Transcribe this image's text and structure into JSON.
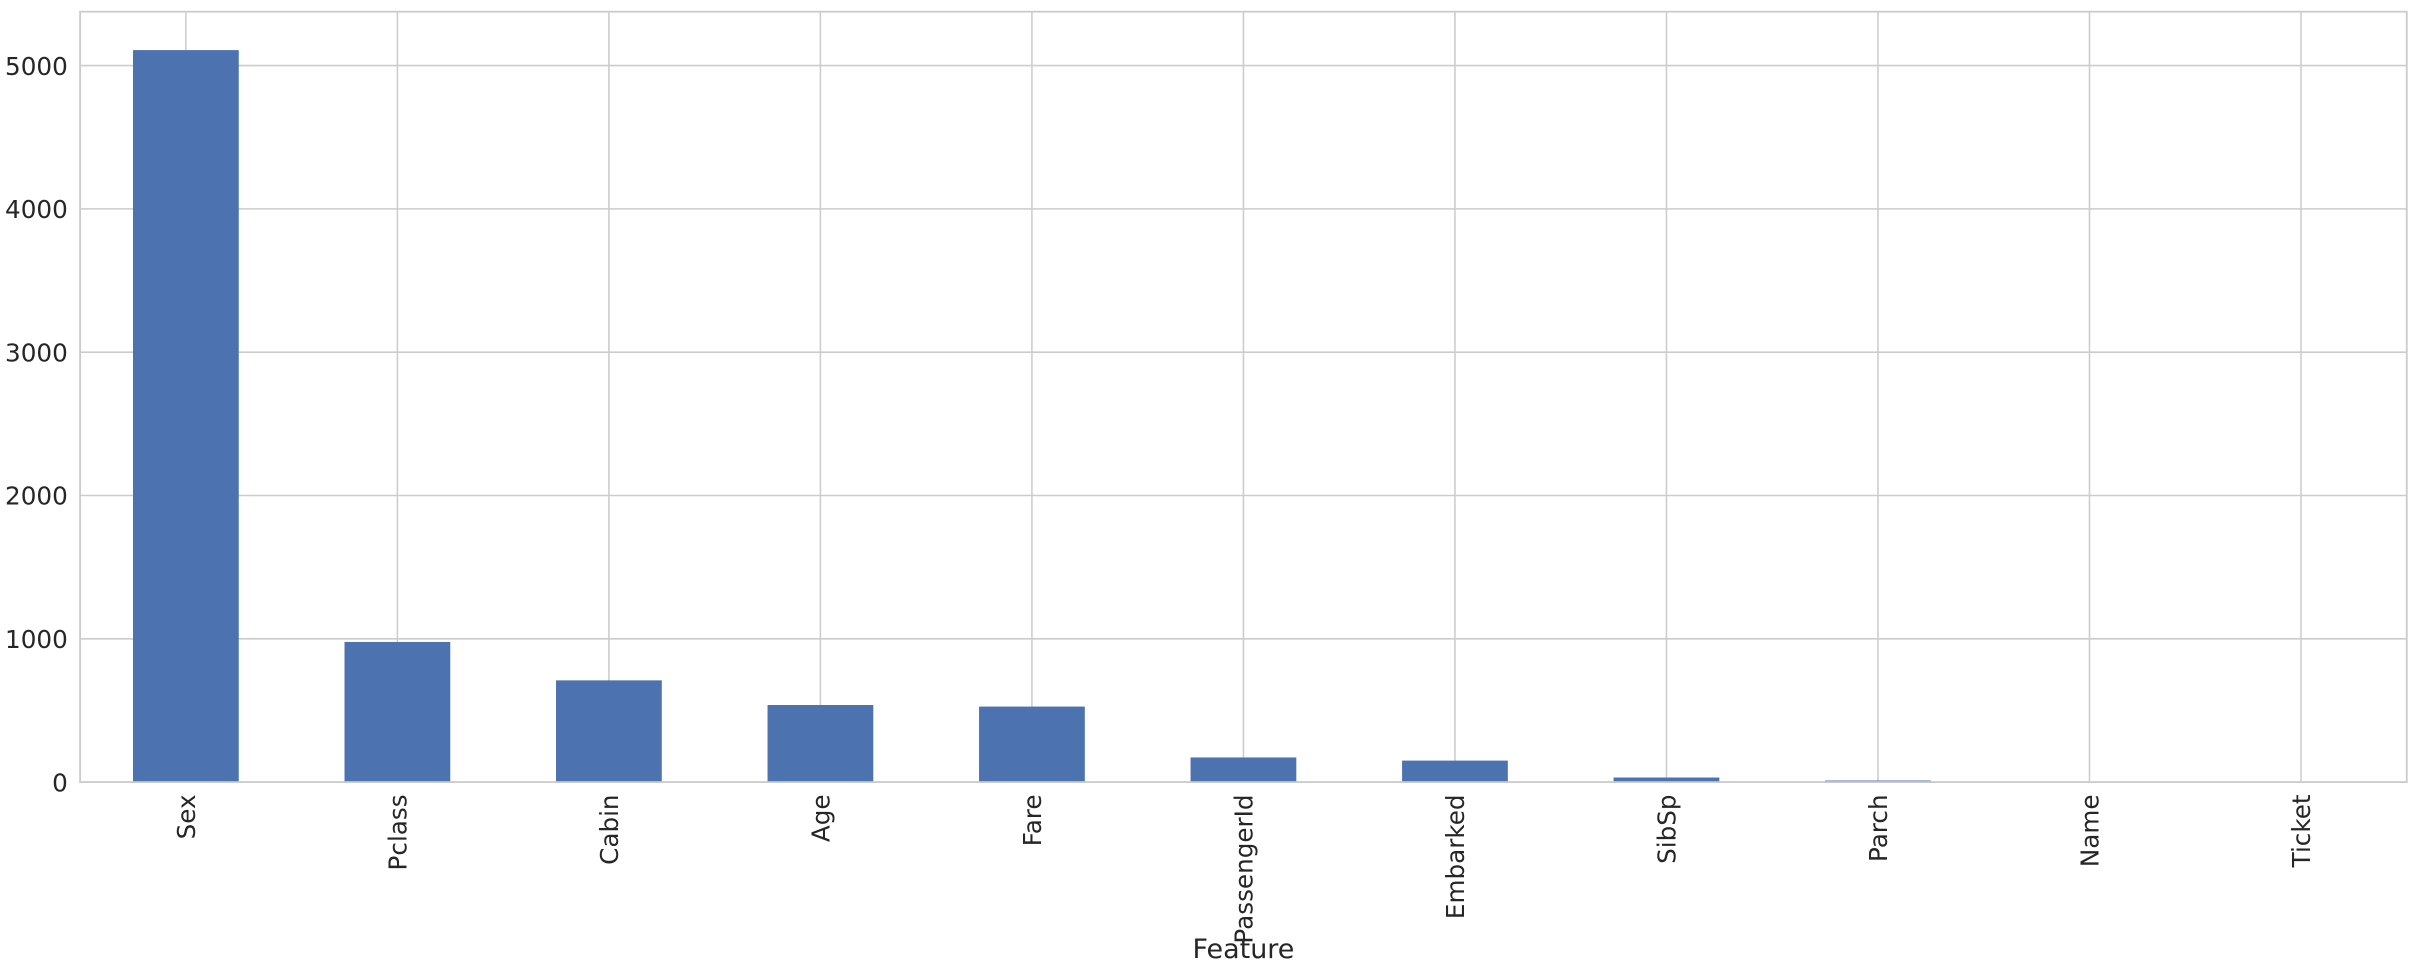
{
  "chart_data": {
    "type": "bar",
    "x_label": "Feature",
    "categories": [
      "Sex",
      "Pclass",
      "Cabin",
      "Age",
      "Fare",
      "PassengerId",
      "Embarked",
      "SibSp",
      "Parch",
      "Name",
      "Ticket"
    ],
    "values": [
      5108,
      978,
      710,
      538,
      527,
      172,
      150,
      32,
      11,
      0,
      0
    ],
    "color": "#4c72b0",
    "ylim": [
      0,
      5376
    ],
    "yticks": [
      0,
      1000,
      2000,
      3000,
      4000,
      5000
    ],
    "grid": true
  }
}
